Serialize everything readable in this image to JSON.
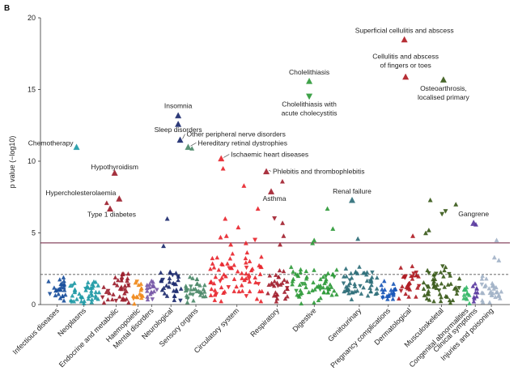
{
  "panel_label": "B",
  "chart_data": {
    "type": "scatter",
    "xlabel": "",
    "ylabel": "p value (−log10)",
    "ylim": [
      0,
      20
    ],
    "yticks": [
      0,
      5,
      10,
      15,
      20
    ],
    "significance_line": 4.3,
    "suggestive_line": 2.1,
    "marker": "triangle",
    "categories": [
      {
        "name": "Infectious diseases",
        "color": "#1a4f9c",
        "n": 25,
        "base": 0.9,
        "spread": 1.0
      },
      {
        "name": "Neoplasms",
        "color": "#1f9aa6",
        "n": 42,
        "base": 0.8,
        "spread": 0.8
      },
      {
        "name": "Endocrine and metabolic",
        "color": "#9c1f2e",
        "n": 38,
        "base": 1.1,
        "spread": 1.1
      },
      {
        "name": "Haemopoietic",
        "color": "#f08a1c",
        "n": 16,
        "base": 0.9,
        "spread": 0.8
      },
      {
        "name": "Mental disorders",
        "color": "#7a5aa8",
        "n": 18,
        "base": 1.0,
        "spread": 0.9
      },
      {
        "name": "Neurological",
        "color": "#1c2a6e",
        "n": 30,
        "base": 1.2,
        "spread": 1.2
      },
      {
        "name": "Sensory organs",
        "color": "#4d8a6a",
        "n": 32,
        "base": 1.0,
        "spread": 0.9
      },
      {
        "name": "Circulatory system",
        "color": "#e8262e",
        "n": 70,
        "base": 1.6,
        "spread": 1.8
      },
      {
        "name": "Respiratory",
        "color": "#a32230",
        "n": 30,
        "base": 1.2,
        "spread": 1.2
      },
      {
        "name": "Digestive",
        "color": "#2f9a3a",
        "n": 62,
        "base": 1.3,
        "spread": 1.3
      },
      {
        "name": "Genitourinary",
        "color": "#2f6f7a",
        "n": 50,
        "base": 1.2,
        "spread": 1.3
      },
      {
        "name": "Pregnancy complications",
        "color": "#1a58b8",
        "n": 22,
        "base": 0.8,
        "spread": 0.8
      },
      {
        "name": "Dermatological",
        "color": "#b01c24",
        "n": 30,
        "base": 1.3,
        "spread": 1.4
      },
      {
        "name": "Musculoskeletal",
        "color": "#3a5a1a",
        "n": 50,
        "base": 1.2,
        "spread": 1.3
      },
      {
        "name": "Congenital abnormalities",
        "color": "#39b86a",
        "n": 12,
        "base": 0.7,
        "spread": 0.6
      },
      {
        "name": "Clinical symptoms",
        "color": "#5a3aa0",
        "n": 10,
        "base": 0.8,
        "spread": 0.7
      },
      {
        "name": "Injuries and poisoning",
        "color": "#a3b3c8",
        "n": 30,
        "base": 1.0,
        "spread": 1.0
      }
    ],
    "highlighted": [
      {
        "label": "Chemotherapy",
        "category": "Neoplasms",
        "y": 11.0
      },
      {
        "label": "Hypothyroidism",
        "category": "Endocrine and metabolic",
        "y": 9.2
      },
      {
        "label": "Hypercholesterolaemia",
        "category": "Endocrine and metabolic",
        "y": 7.4
      },
      {
        "label": "Type 1 diabetes",
        "category": "Endocrine and metabolic",
        "y": 6.7
      },
      {
        "label": "Insomnia",
        "category": "Neurological",
        "y": 13.2
      },
      {
        "label": "Sleep disorders",
        "category": "Neurological",
        "y": 12.6
      },
      {
        "label": "Other peripheral nerve disorders",
        "category": "Neurological",
        "y": 11.5
      },
      {
        "label": "Hereditary retinal dystrophies",
        "category": "Sensory organs",
        "y": 11.0
      },
      {
        "label": "Ischaemic heart diseases",
        "category": "Circulatory system",
        "y": 10.2
      },
      {
        "label": "Phlebitis and thrombophlebitis",
        "category": "Respiratory",
        "y": 9.3
      },
      {
        "label": "Asthma",
        "category": "Respiratory",
        "y": 7.9
      },
      {
        "label": "Cholelithiasis",
        "category": "Digestive",
        "y": 15.6
      },
      {
        "label": "Cholelithiasis with acute cholecystitis",
        "category": "Digestive",
        "y": 14.5
      },
      {
        "label": "Renal failure",
        "category": "Genitourinary",
        "y": 7.3
      },
      {
        "label": "Superficial cellulitis and abscess",
        "category": "Dermatological",
        "y": 18.5
      },
      {
        "label": "Cellulitis and abscess of fingers or toes",
        "category": "Dermatological",
        "y": 15.9
      },
      {
        "label": "Osteoarthrosis, localised primary",
        "category": "Musculoskeletal",
        "y": 15.7
      },
      {
        "label": "Gangrene",
        "category": "Clinical symptoms",
        "y": 5.7
      }
    ],
    "extra_points": [
      {
        "category": "Endocrine and metabolic",
        "y": 7.1
      },
      {
        "category": "Neurological",
        "y": 6.0
      },
      {
        "category": "Neurological",
        "y": 4.1
      },
      {
        "category": "Sensory organs",
        "y": 10.9
      },
      {
        "category": "Circulatory system",
        "y": 9.5
      },
      {
        "category": "Circulatory system",
        "y": 8.3
      },
      {
        "category": "Circulatory system",
        "y": 6.7
      },
      {
        "category": "Circulatory system",
        "y": 6.0
      },
      {
        "category": "Circulatory system",
        "y": 5.4
      },
      {
        "category": "Circulatory system",
        "y": 4.8
      },
      {
        "category": "Circulatory system",
        "y": 4.7
      },
      {
        "category": "Circulatory system",
        "y": 4.5
      },
      {
        "category": "Circulatory system",
        "y": 4.3
      },
      {
        "category": "Circulatory system",
        "y": 4.2
      },
      {
        "category": "Respiratory",
        "y": 8.6
      },
      {
        "category": "Respiratory",
        "y": 6.0
      },
      {
        "category": "Respiratory",
        "y": 5.7
      },
      {
        "category": "Respiratory",
        "y": 4.8
      },
      {
        "category": "Respiratory",
        "y": 4.2
      },
      {
        "category": "Digestive",
        "y": 6.7
      },
      {
        "category": "Digestive",
        "y": 5.3
      },
      {
        "category": "Digestive",
        "y": 4.5
      },
      {
        "category": "Digestive",
        "y": 4.3
      },
      {
        "category": "Genitourinary",
        "y": 4.6
      },
      {
        "category": "Dermatological",
        "y": 4.8
      },
      {
        "category": "Musculoskeletal",
        "y": 7.3
      },
      {
        "category": "Musculoskeletal",
        "y": 7.0
      },
      {
        "category": "Musculoskeletal",
        "y": 6.5
      },
      {
        "category": "Musculoskeletal",
        "y": 6.3
      },
      {
        "category": "Musculoskeletal",
        "y": 5.2
      },
      {
        "category": "Musculoskeletal",
        "y": 5.0
      },
      {
        "category": "Clinical symptoms",
        "y": 5.6
      },
      {
        "category": "Injuries and poisoning",
        "y": 4.5
      },
      {
        "category": "Injuries and poisoning",
        "y": 3.3
      },
      {
        "category": "Injuries and poisoning",
        "y": 3.1
      }
    ]
  }
}
